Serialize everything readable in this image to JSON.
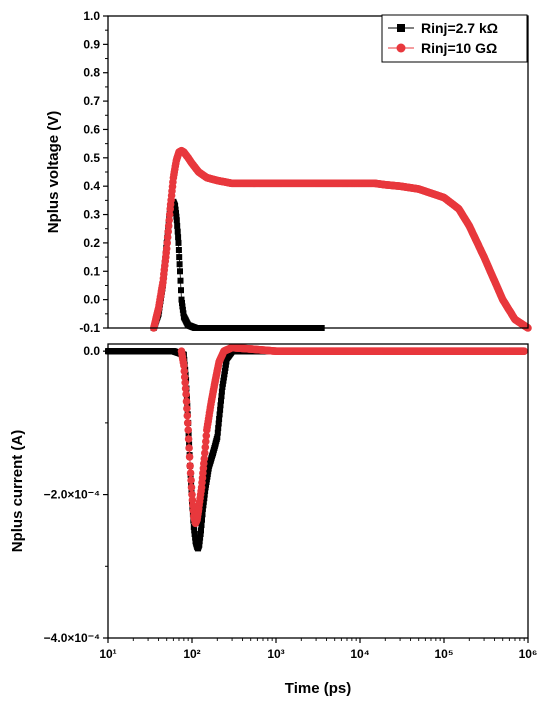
{
  "chart_data": [
    {
      "type": "scatter",
      "panel": "top",
      "ylabel": "Nplus voltage (V)",
      "xscale": "log",
      "xlim": [
        10,
        1000000
      ],
      "ylim": [
        -0.1,
        1.0
      ],
      "yticks": [
        "-0.1",
        "0.0",
        "0.1",
        "0.2",
        "0.3",
        "0.4",
        "0.5",
        "0.6",
        "0.7",
        "0.8",
        "0.9",
        "1.0"
      ],
      "grid": false,
      "legend_position": "top-right",
      "series": [
        {
          "name": "Rinj=2.7 kΩ",
          "color": "#000000",
          "marker": "square",
          "x": [
            35,
            40,
            45,
            50,
            55,
            58,
            60,
            63,
            66,
            69,
            72,
            75,
            80,
            90,
            110,
            150,
            300,
            1000,
            3500
          ],
          "y": [
            -0.1,
            -0.05,
            0.05,
            0.2,
            0.32,
            0.34,
            0.345,
            0.33,
            0.28,
            0.2,
            0.1,
            0.0,
            -0.06,
            -0.09,
            -0.1,
            -0.1,
            -0.1,
            -0.1,
            -0.1
          ]
        },
        {
          "name": "Rinj=10 GΩ",
          "color": "#e8383d",
          "marker": "circle",
          "x": [
            35,
            40,
            45,
            50,
            55,
            60,
            65,
            70,
            75,
            80,
            90,
            100,
            120,
            150,
            200,
            300,
            500,
            700,
            5000,
            8000,
            10000,
            12000,
            15000,
            20000,
            30000,
            50000,
            100000,
            150000,
            200000,
            300000,
            500000,
            700000,
            1000000
          ],
          "y": [
            -0.1,
            -0.03,
            0.06,
            0.18,
            0.32,
            0.43,
            0.49,
            0.52,
            0.525,
            0.52,
            0.5,
            0.48,
            0.45,
            0.43,
            0.42,
            0.41,
            0.41,
            0.41,
            0.41,
            0.41,
            0.41,
            0.41,
            0.41,
            0.405,
            0.4,
            0.39,
            0.36,
            0.32,
            0.26,
            0.15,
            0.0,
            -0.07,
            -0.1
          ]
        }
      ]
    },
    {
      "type": "scatter",
      "panel": "bottom",
      "xlabel": "Time (ps)",
      "ylabel": "Nplus current (A)",
      "xscale": "log",
      "xlim": [
        10,
        1000000
      ],
      "ylim": [
        -0.0004,
        1e-05
      ],
      "yticks": [
        "0.0",
        "−2.0×10⁻⁴",
        "−4.0×10⁻⁴"
      ],
      "xticks": [
        "10¹",
        "10²",
        "10³",
        "10⁴",
        "10⁵",
        "10⁶"
      ],
      "grid": false,
      "series": [
        {
          "name": "Rinj=2.7 kΩ",
          "color": "#000000",
          "marker": "square",
          "x": [
            10,
            20,
            40,
            60,
            80,
            85,
            90,
            95,
            100,
            105,
            110,
            115,
            118,
            122,
            128,
            135,
            145,
            160,
            180,
            200,
            230,
            260,
            300,
            500,
            1000,
            10000,
            100000
          ],
          "y": [
            0,
            0,
            0,
            0,
            -5e-06,
            -4e-05,
            -0.0001,
            -0.00016,
            -0.00021,
            -0.000245,
            -0.000265,
            -0.000273,
            -0.000275,
            -0.00027,
            -0.00025,
            -0.00022,
            -0.00019,
            -0.00016,
            -0.00014,
            -0.00012,
            -5e-05,
            -1e-05,
            0,
            0,
            0,
            0,
            0
          ]
        },
        {
          "name": "Rinj=10 GΩ",
          "color": "#e8383d",
          "marker": "circle",
          "x": [
            75,
            80,
            85,
            90,
            95,
            100,
            105,
            110,
            115,
            120,
            130,
            140,
            150,
            170,
            190,
            210,
            240,
            300,
            500,
            1000,
            10000,
            100000,
            250000,
            550000,
            900000
          ],
          "y": [
            0,
            -2e-05,
            -6e-05,
            -0.00011,
            -0.00016,
            -0.0002,
            -0.00023,
            -0.00024,
            -0.000235,
            -0.00022,
            -0.00019,
            -0.00015,
            -0.00011,
            -7e-05,
            -4e-05,
            -1.5e-05,
            0,
            5e-06,
            3e-06,
            0,
            0,
            0,
            0,
            0,
            0
          ]
        }
      ]
    }
  ]
}
